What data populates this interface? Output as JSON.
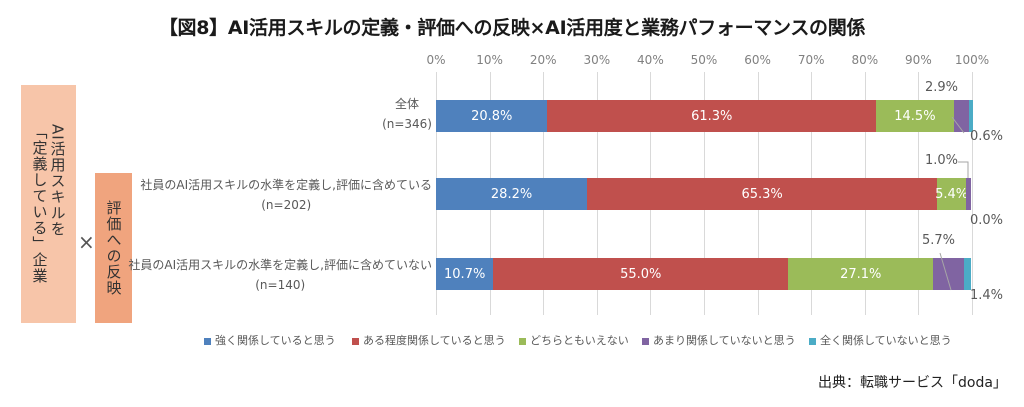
{
  "header": {
    "title": "【図8】AI活用スキルの定義・評価への反映×AI活用度と業務パフォーマンスの関係"
  },
  "side_labels": {
    "box1_line1": "AI活用スキルを",
    "box1_line2": "「定義している」企業",
    "times": "×",
    "box2": "評価への反映",
    "box1_color": "#f7c5a9",
    "box2_color": "#f0a47e"
  },
  "categories": [
    {
      "line1": "全体",
      "line2": "(n=346)"
    },
    {
      "line1": "社員のAI活用スキルの水準を定義し,評価に含めている",
      "line2": "(n=202)"
    },
    {
      "line1": "社員のAI活用スキルの水準を定義し,評価に含めていない",
      "line2": "(n=140)"
    }
  ],
  "outside_labels": {
    "bar0_s3": "2.9%",
    "bar0_s4": "0.6%",
    "bar1_s3": "1.0%",
    "bar1_s4": "0.0%",
    "bar2_s3": "5.7%",
    "bar2_s4": "1.4%"
  },
  "source": "出典：転職サービス「doda」",
  "chart_data": {
    "type": "bar",
    "orientation": "horizontal",
    "stacked": true,
    "percent_stacked": true,
    "title": "【図8】AI活用スキルの定義・評価への反映×AI活用度と業務パフォーマンスの関係",
    "xlabel": "",
    "ylabel": "",
    "xlim": [
      0,
      100
    ],
    "xticks": [
      "0%",
      "10%",
      "20%",
      "30%",
      "40%",
      "50%",
      "60%",
      "70%",
      "80%",
      "90%",
      "100%"
    ],
    "grid": true,
    "legend_position": "bottom",
    "categories": [
      "全体 (n=346)",
      "社員のAI活用スキルの水準を定義し,評価に含めている (n=202)",
      "社員のAI活用スキルの水準を定義し,評価に含めていない (n=140)"
    ],
    "series": [
      {
        "name": "強く関係していると思う",
        "color": "#4f81bd",
        "values": [
          20.8,
          28.2,
          10.7
        ]
      },
      {
        "name": "ある程度関係していると思う",
        "color": "#c0504d",
        "values": [
          61.3,
          65.3,
          55.0
        ]
      },
      {
        "name": "どちらともいえない",
        "color": "#9bbb59",
        "values": [
          14.5,
          5.4,
          27.1
        ]
      },
      {
        "name": "あまり関係していないと思う",
        "color": "#8064a2",
        "values": [
          2.9,
          1.0,
          5.7
        ]
      },
      {
        "name": "全く関係していないと思う",
        "color": "#4bacc6",
        "values": [
          0.6,
          0.0,
          1.4
        ]
      }
    ]
  }
}
